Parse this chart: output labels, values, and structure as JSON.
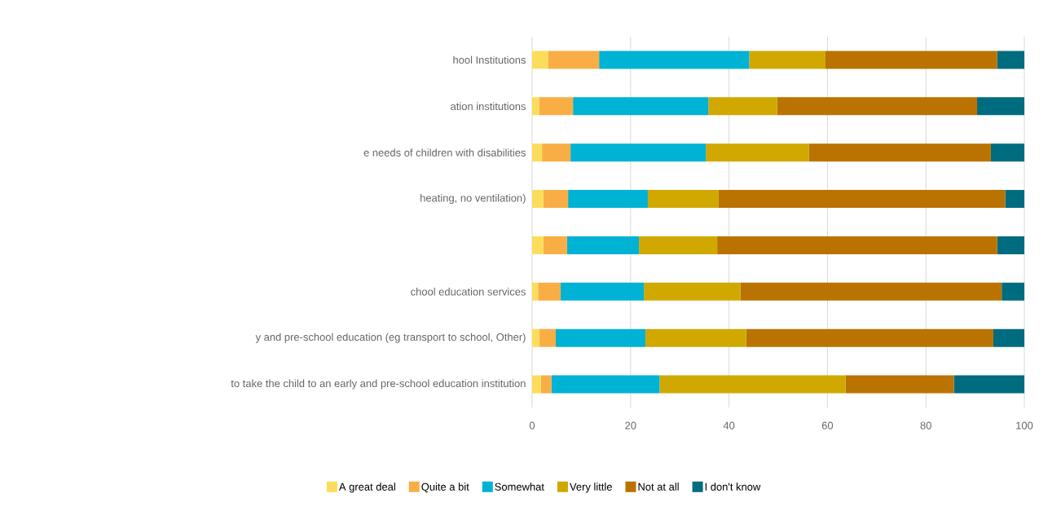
{
  "chart_data": {
    "type": "bar",
    "orientation": "horizontal",
    "stacked": true,
    "categories": [
      "hool Institutions",
      "ation institutions",
      "e needs of children with  disabilities",
      "heating, no ventilation)",
      null,
      "chool education services",
      "y and pre-school education (eg transport to school, Other)",
      "to take the child to an early and pre-school education institution"
    ],
    "series": [
      {
        "name": "A great deal",
        "color": "#fcdc5c",
        "values": [
          3.2,
          1.4,
          2.0,
          2.3,
          2.3,
          1.2,
          1.5,
          1.8
        ]
      },
      {
        "name": "Quite a bit",
        "color": "#f9ae45",
        "values": [
          10.4,
          6.9,
          5.8,
          5.0,
          4.8,
          4.6,
          3.3,
          2.1
        ]
      },
      {
        "name": "Somewhat",
        "color": "#00b2d4",
        "values": [
          30.5,
          27.5,
          27.5,
          16.2,
          14.6,
          16.9,
          18.2,
          22.0
        ]
      },
      {
        "name": "Very little",
        "color": "#d0a800",
        "values": [
          15.5,
          14.0,
          20.9,
          14.4,
          15.9,
          19.6,
          20.5,
          37.8
        ]
      },
      {
        "name": "Not at all",
        "color": "#ba7300",
        "values": [
          34.9,
          40.6,
          37.0,
          58.2,
          56.9,
          53.1,
          50.2,
          22.0
        ]
      },
      {
        "name": "I don't know",
        "color": "#006c7f",
        "values": [
          5.5,
          9.6,
          6.8,
          3.9,
          5.5,
          4.6,
          6.3,
          14.3
        ]
      }
    ],
    "xlim": [
      0,
      100
    ],
    "xticks": [
      0,
      20,
      40,
      60,
      80,
      100
    ],
    "grid": "x",
    "legend": "bottom"
  }
}
